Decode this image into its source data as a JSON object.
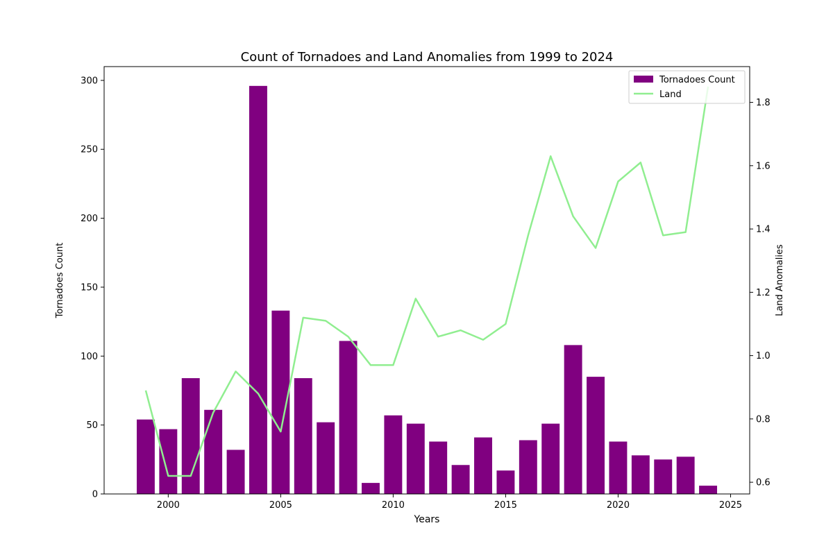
{
  "chart_data": {
    "type": "bar+line",
    "title": "Count of Tornadoes and Land Anomalies from 1999 to 2024",
    "xlabel": "Years",
    "ylabel_left": "Tornadoes Count",
    "ylabel_right": "Land Anomalies",
    "x": [
      1999,
      2000,
      2001,
      2002,
      2003,
      2004,
      2005,
      2006,
      2007,
      2008,
      2009,
      2010,
      2011,
      2012,
      2013,
      2014,
      2015,
      2016,
      2017,
      2018,
      2019,
      2020,
      2021,
      2022,
      2023,
      2024
    ],
    "xlim": [
      1997.15,
      2025.85
    ],
    "xticks": [
      2000,
      2005,
      2010,
      2015,
      2020,
      2025
    ],
    "ylim_left": [
      0,
      310
    ],
    "yticks_left": [
      0,
      50,
      100,
      150,
      200,
      250,
      300
    ],
    "ylim_right": [
      0.563,
      1.913
    ],
    "yticks_right": [
      0.6,
      0.8,
      1.0,
      1.2,
      1.4,
      1.6,
      1.8
    ],
    "grid": false,
    "legend_position": "top-right",
    "series": [
      {
        "name": "Tornadoes Count",
        "type": "bar",
        "axis": "left",
        "color": "#800080",
        "values": [
          54,
          47,
          84,
          61,
          32,
          296,
          133,
          84,
          52,
          111,
          8,
          57,
          51,
          38,
          21,
          41,
          17,
          39,
          51,
          108,
          85,
          38,
          28,
          25,
          27,
          6
        ]
      },
      {
        "name": "Land",
        "type": "line",
        "axis": "right",
        "color": "#90ee90",
        "values": [
          0.89,
          0.62,
          0.62,
          0.82,
          0.95,
          0.88,
          0.76,
          1.12,
          1.11,
          1.06,
          0.97,
          0.97,
          1.18,
          1.06,
          1.08,
          1.05,
          1.1,
          1.38,
          1.63,
          1.44,
          1.34,
          1.55,
          1.61,
          1.38,
          1.39,
          1.85
        ]
      }
    ]
  }
}
